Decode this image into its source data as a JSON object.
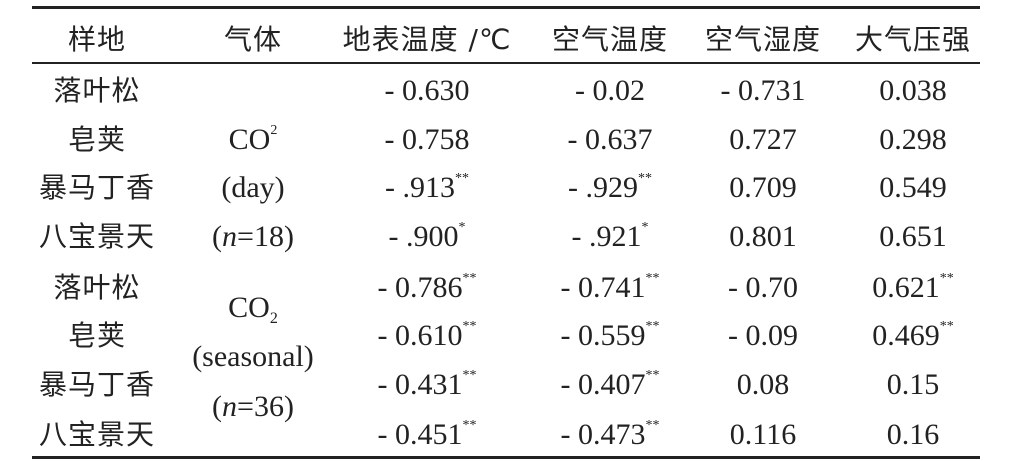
{
  "table": {
    "headers": [
      "样地",
      "气体",
      "地表温度 /℃",
      "空气温度",
      "空气湿度",
      "大气压强"
    ],
    "groups": [
      {
        "gas": {
          "formula_base": "CO",
          "formula_mark": "2",
          "formula_mark_type": "sup",
          "period": "(day)",
          "n_label": "n",
          "n_value": "=18"
        },
        "rows": [
          {
            "site": "落叶松",
            "values": [
              {
                "v": "- 0.630",
                "sig": ""
              },
              {
                "v": "- 0.02",
                "sig": ""
              },
              {
                "v": "- 0.731",
                "sig": ""
              },
              {
                "v": "0.038",
                "sig": ""
              }
            ]
          },
          {
            "site": "皂荚",
            "values": [
              {
                "v": "- 0.758",
                "sig": ""
              },
              {
                "v": "- 0.637",
                "sig": ""
              },
              {
                "v": "0.727",
                "sig": ""
              },
              {
                "v": "0.298",
                "sig": ""
              }
            ]
          },
          {
            "site": "暴马丁香",
            "values": [
              {
                "v": "- .913",
                "sig": "**"
              },
              {
                "v": "- .929",
                "sig": "**"
              },
              {
                "v": "0.709",
                "sig": ""
              },
              {
                "v": "0.549",
                "sig": ""
              }
            ]
          },
          {
            "site": "八宝景天",
            "values": [
              {
                "v": "- .900",
                "sig": "*"
              },
              {
                "v": "- .921",
                "sig": "*"
              },
              {
                "v": "0.801",
                "sig": ""
              },
              {
                "v": "0.651",
                "sig": ""
              }
            ]
          }
        ]
      },
      {
        "gas": {
          "formula_base": "CO",
          "formula_mark": "2",
          "formula_mark_type": "sub",
          "period": "(seasonal)",
          "n_label": "n",
          "n_value": "=36"
        },
        "rows": [
          {
            "site": "落叶松",
            "values": [
              {
                "v": "- 0.786",
                "sig": "**"
              },
              {
                "v": "- 0.741",
                "sig": "**"
              },
              {
                "v": "- 0.70",
                "sig": ""
              },
              {
                "v": "0.621",
                "sig": "**"
              }
            ]
          },
          {
            "site": "皂荚",
            "values": [
              {
                "v": "- 0.610",
                "sig": "**"
              },
              {
                "v": "- 0.559",
                "sig": "**"
              },
              {
                "v": "- 0.09",
                "sig": ""
              },
              {
                "v": "0.469",
                "sig": "**"
              }
            ]
          },
          {
            "site": "暴马丁香",
            "values": [
              {
                "v": "- 0.431",
                "sig": "**"
              },
              {
                "v": "- 0.407",
                "sig": "**"
              },
              {
                "v": "0.08",
                "sig": ""
              },
              {
                "v": "0.15",
                "sig": ""
              }
            ]
          },
          {
            "site": "八宝景天",
            "values": [
              {
                "v": "- 0.451",
                "sig": "**"
              },
              {
                "v": "- 0.473",
                "sig": "**"
              },
              {
                "v": "0.116",
                "sig": ""
              },
              {
                "v": "0.16",
                "sig": ""
              }
            ]
          }
        ]
      }
    ]
  }
}
